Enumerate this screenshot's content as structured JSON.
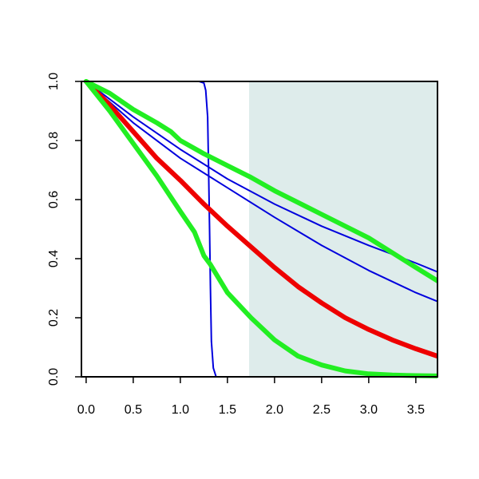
{
  "chart_data": {
    "type": "line",
    "title": "",
    "xlabel": "",
    "ylabel": "",
    "xlim": [
      -0.05,
      3.73
    ],
    "ylim": [
      0.0,
      1.0
    ],
    "grid": false,
    "x_ticks": [
      {
        "value": 0.0,
        "label": "0.0"
      },
      {
        "value": 0.5,
        "label": "0.5"
      },
      {
        "value": 1.0,
        "label": "1.0"
      },
      {
        "value": 1.5,
        "label": "1.5"
      },
      {
        "value": 2.0,
        "label": "2.0"
      },
      {
        "value": 2.5,
        "label": "2.5"
      },
      {
        "value": 3.0,
        "label": "3.0"
      },
      {
        "value": 3.5,
        "label": "3.5"
      }
    ],
    "y_ticks": [
      {
        "value": 0.0,
        "label": "0.0"
      },
      {
        "value": 0.2,
        "label": "0.2"
      },
      {
        "value": 0.4,
        "label": "0.4"
      },
      {
        "value": 0.6,
        "label": "0.6"
      },
      {
        "value": 0.8,
        "label": "0.8"
      },
      {
        "value": 1.0,
        "label": "1.0"
      }
    ],
    "shaded_region": {
      "x_from": 1.73,
      "x_to": 3.73,
      "color": "#deeceb"
    },
    "series": [
      {
        "color": "#0000dd",
        "weight": "thin",
        "x": [
          0.0,
          1.2,
          1.25,
          1.27,
          1.29,
          1.3,
          1.31,
          1.32,
          1.33,
          1.35,
          1.38,
          1.42,
          3.73
        ],
        "y": [
          1.0,
          1.0,
          0.995,
          0.97,
          0.88,
          0.7,
          0.5,
          0.3,
          0.12,
          0.03,
          0.0,
          0.0,
          0.0
        ]
      },
      {
        "color": "#0000dd",
        "weight": "thin",
        "x": [
          0.0,
          0.5,
          1.0,
          1.5,
          2.0,
          2.5,
          3.0,
          3.5,
          3.73
        ],
        "y": [
          1.0,
          0.88,
          0.77,
          0.67,
          0.585,
          0.51,
          0.445,
          0.385,
          0.355
        ]
      },
      {
        "color": "#0000dd",
        "weight": "thin",
        "x": [
          0.0,
          0.5,
          1.0,
          1.5,
          2.0,
          2.5,
          3.0,
          3.5,
          3.73
        ],
        "y": [
          1.0,
          0.86,
          0.74,
          0.64,
          0.54,
          0.445,
          0.36,
          0.285,
          0.255
        ]
      },
      {
        "color": "#ee0000",
        "weight": "thick",
        "x": [
          0.0,
          0.25,
          0.5,
          0.75,
          1.0,
          1.25,
          1.5,
          1.75,
          2.0,
          2.25,
          2.5,
          2.75,
          3.0,
          3.25,
          3.5,
          3.73
        ],
        "y": [
          1.0,
          0.92,
          0.83,
          0.74,
          0.665,
          0.585,
          0.51,
          0.44,
          0.37,
          0.305,
          0.25,
          0.2,
          0.16,
          0.125,
          0.095,
          0.07
        ]
      },
      {
        "color": "#22ee22",
        "weight": "thick",
        "x": [
          0.0,
          0.25,
          0.5,
          0.75,
          0.9,
          1.0,
          1.25,
          1.5,
          1.75,
          2.0,
          2.5,
          3.0,
          3.5,
          3.73
        ],
        "y": [
          1.0,
          0.96,
          0.905,
          0.86,
          0.83,
          0.8,
          0.755,
          0.715,
          0.675,
          0.63,
          0.55,
          0.47,
          0.37,
          0.325
        ]
      },
      {
        "color": "#22ee22",
        "weight": "thick",
        "x": [
          0.0,
          0.25,
          0.5,
          0.75,
          1.0,
          1.15,
          1.2,
          1.25,
          1.32,
          1.5,
          1.75,
          2.0,
          2.25,
          2.5,
          2.75,
          3.0,
          3.25,
          3.5,
          3.73
        ],
        "y": [
          1.0,
          0.9,
          0.79,
          0.68,
          0.56,
          0.49,
          0.45,
          0.41,
          0.38,
          0.285,
          0.2,
          0.125,
          0.07,
          0.04,
          0.02,
          0.01,
          0.006,
          0.004,
          0.003
        ]
      }
    ]
  }
}
